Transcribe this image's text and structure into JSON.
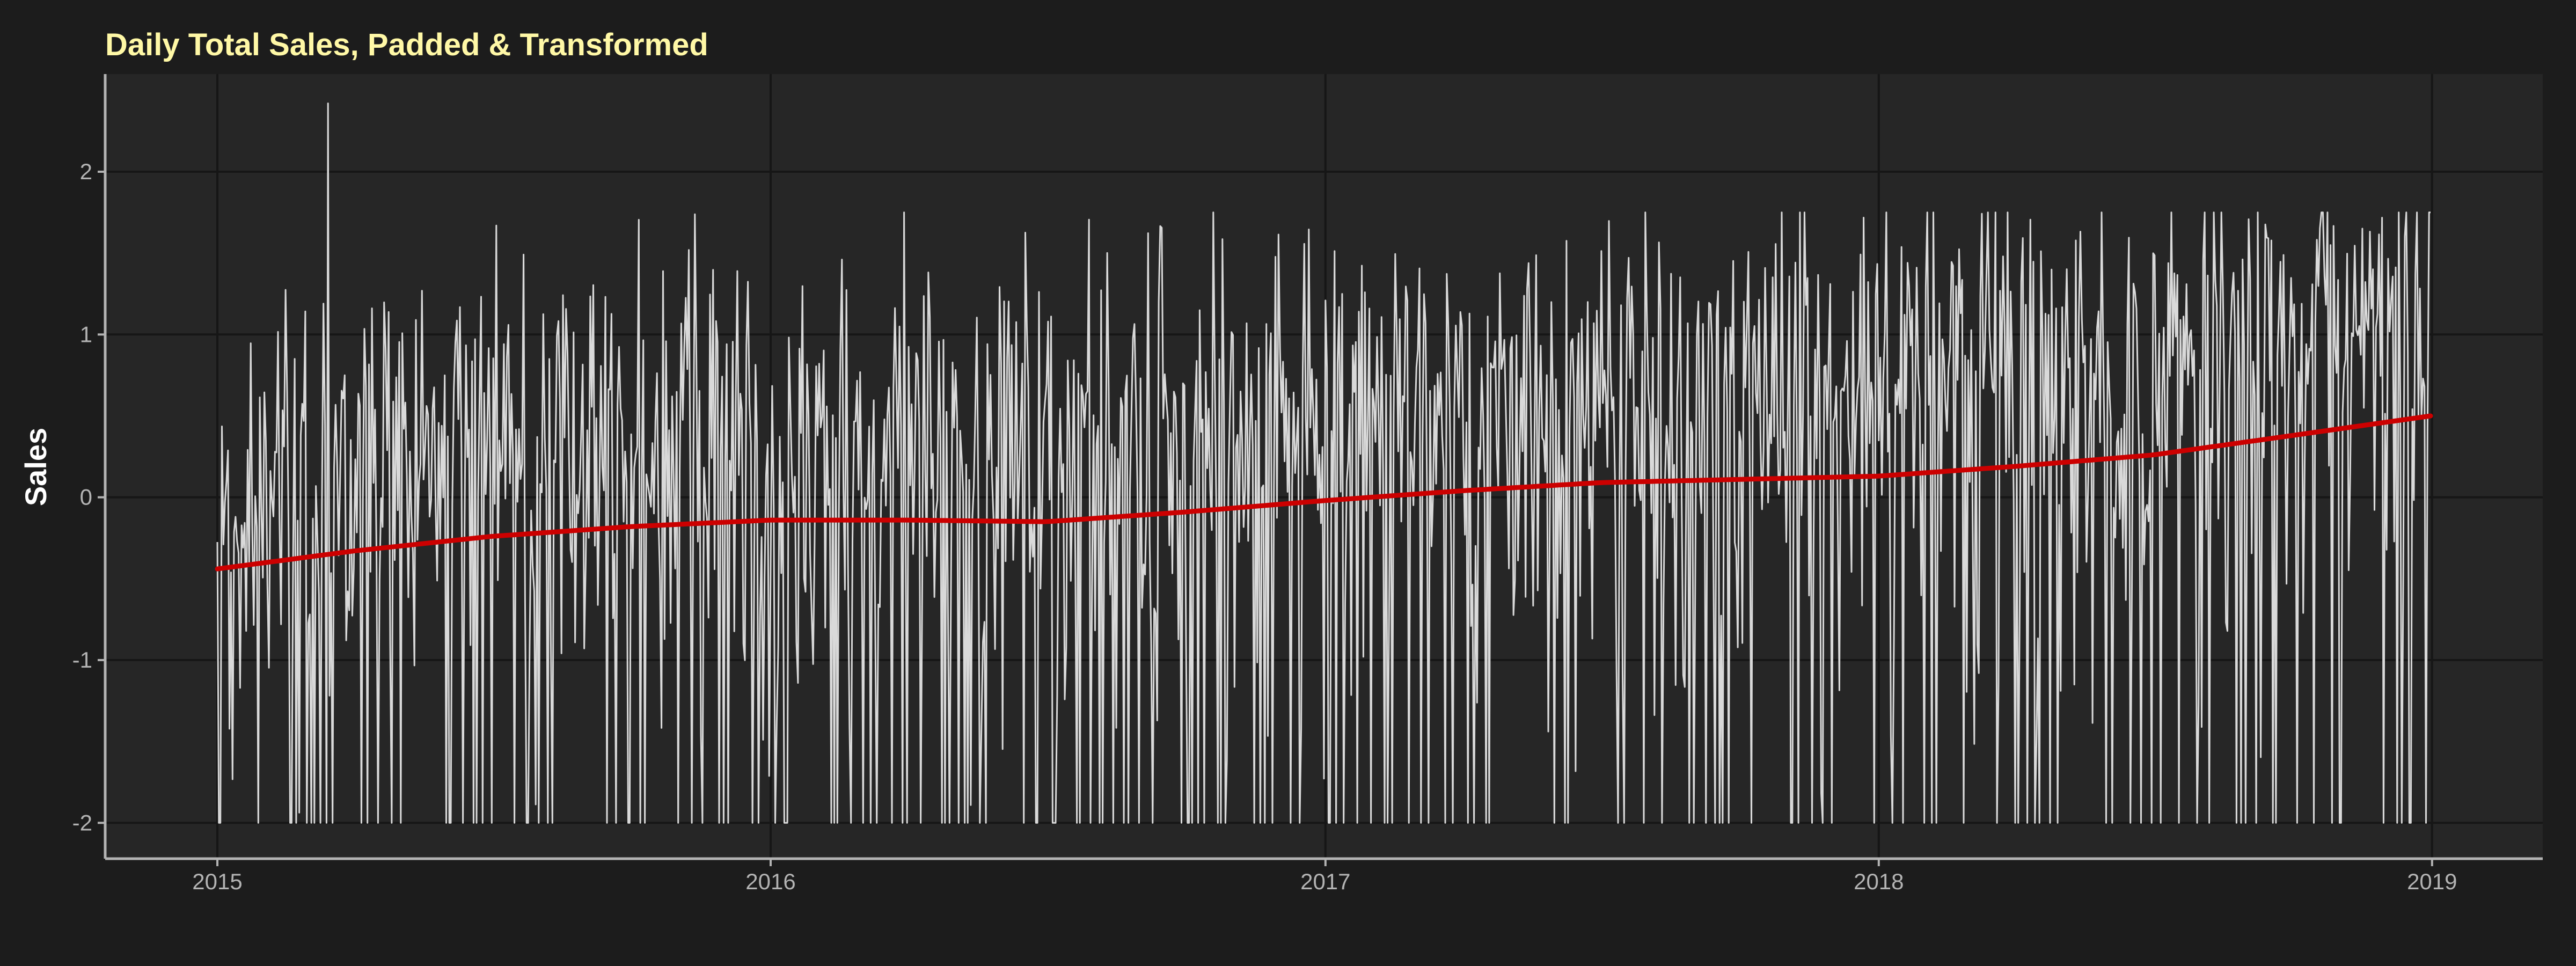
{
  "chart_data": {
    "type": "line",
    "title": "Daily Total Sales, Padded & Transformed",
    "xlabel": "",
    "ylabel": "Sales",
    "x_ticks": [
      "2015",
      "2016",
      "2017",
      "2018",
      "2019"
    ],
    "y_ticks": [
      "-2",
      "-1",
      "0",
      "1",
      "2"
    ],
    "x_range": [
      "2014-10-19",
      "2019-03-15"
    ],
    "ylim": [
      -2.22,
      2.6
    ],
    "grid": true,
    "series": [
      {
        "role": "daily",
        "x_start": "2015-01-01",
        "x_end": "2018-12-31",
        "frequency": "daily",
        "y_floor": -2,
        "peak": {
          "x": "2015-03-15",
          "y": 2.42
        },
        "approx_band": {
          "upper": 1.0,
          "lower": -1.0
        },
        "color": "#d9d9d9"
      },
      {
        "role": "trend",
        "x": [
          "2015-01-01",
          "2015-04-01",
          "2015-07-01",
          "2015-10-01",
          "2016-01-01",
          "2016-04-01",
          "2016-07-01",
          "2016-10-01",
          "2017-01-01",
          "2017-04-01",
          "2017-07-01",
          "2017-10-01",
          "2018-01-01",
          "2018-04-01",
          "2018-07-01",
          "2018-10-01",
          "2018-12-31"
        ],
        "values": [
          -0.44,
          -0.33,
          -0.24,
          -0.18,
          -0.14,
          -0.14,
          -0.15,
          -0.09,
          -0.02,
          0.04,
          0.09,
          0.11,
          0.13,
          0.19,
          0.26,
          0.38,
          0.5
        ],
        "color": "#cc0000"
      }
    ]
  },
  "colors": {
    "background": "#1c1c1c",
    "panel": "#262626",
    "grid": "#161616",
    "axis": "#b3b3b3",
    "title": "#fff8a6",
    "line": "#d9d9d9",
    "trend": "#cc0000"
  }
}
